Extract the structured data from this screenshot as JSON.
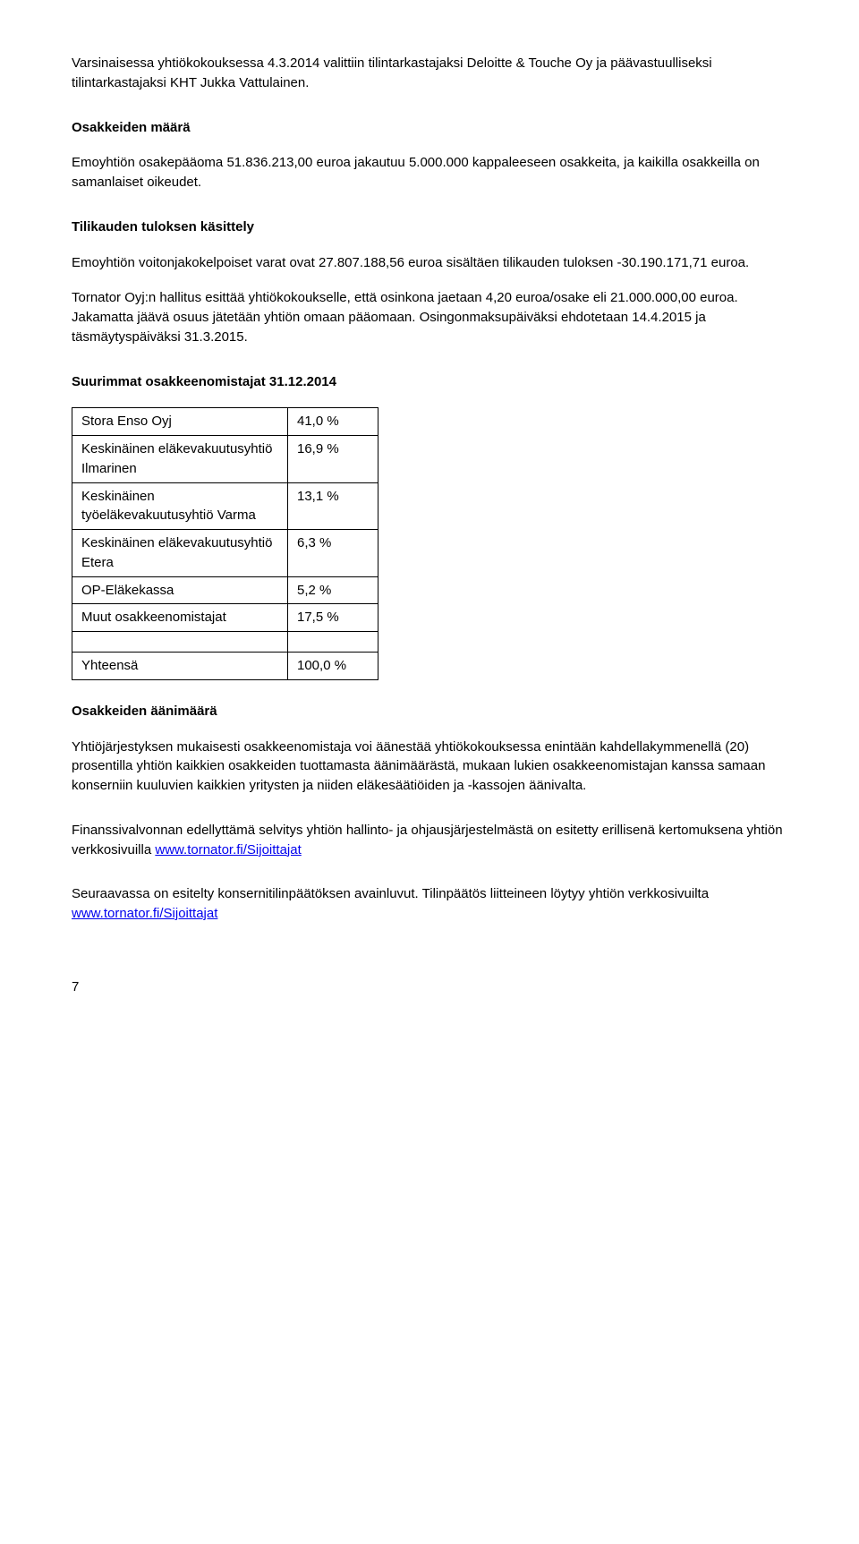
{
  "para1": "Varsinaisessa yhtiökokouksessa 4.3.2014 valittiin tilintarkastajaksi Deloitte & Touche Oy ja päävastuulliseksi tilintarkastajaksi KHT Jukka Vattulainen.",
  "heading1": "Osakkeiden määrä",
  "para2": "Emoyhtiön osakepääoma 51.836.213,00 euroa jakautuu 5.000.000 kappaleeseen osakkeita, ja kaikilla osakkeilla on samanlaiset oikeudet.",
  "heading2": "Tilikauden tuloksen käsittely",
  "para3": "Emoyhtiön voitonjakokelpoiset varat ovat 27.807.188,56 euroa sisältäen tilikauden tuloksen -30.190.171,71 euroa.",
  "para4": "Tornator Oyj:n hallitus esittää yhtiökokoukselle, että osinkona jaetaan 4,20 euroa/osake eli 21.000.000,00 euroa. Jakamatta jäävä osuus jätetään yhtiön omaan pääomaan. Osingonmaksupäiväksi ehdotetaan 14.4.2015 ja täsmäytyspäiväksi 31.3.2015.",
  "heading3": "Suurimmat osakkeenomistajat 31.12.2014",
  "table": {
    "rows": [
      {
        "label": "Stora Enso Oyj",
        "value": "41,0 %"
      },
      {
        "label": "Keskinäinen eläkevakuutusyhtiö Ilmarinen",
        "value": "16,9 %"
      },
      {
        "label": "Keskinäinen työeläkevakuutusyhtiö Varma",
        "value": "13,1 %"
      },
      {
        "label": "Keskinäinen eläkevakuutusyhtiö Etera",
        "value": "6,3 %"
      },
      {
        "label": "OP-Eläkekassa",
        "value": "5,2 %"
      },
      {
        "label": "Muut osakkeenomistajat",
        "value": "17,5 %"
      },
      {
        "label": "Yhteensä",
        "value": "100,0 %"
      }
    ]
  },
  "heading4": "Osakkeiden äänimäärä",
  "para5": "Yhtiöjärjestyksen mukaisesti osakkeenomistaja voi äänestää yhtiökokouksessa enintään kahdellakymmenellä (20) prosentilla yhtiön kaikkien osakkeiden tuottamasta äänimäärästä, mukaan lukien osakkeenomistajan kanssa samaan konserniin kuuluvien kaikkien yritysten ja niiden eläkesäätiöiden ja -kassojen äänivalta.",
  "para6_pre": "Finanssivalvonnan edellyttämä selvitys yhtiön hallinto- ja ohjausjärjestelmästä on esitetty erillisenä kertomuksena yhtiön verkkosivuilla ",
  "link1": "www.tornator.fi/Sijoittajat",
  "para7_pre": "Seuraavassa on esitelty konsernitilinpäätöksen avainluvut. Tilinpäätös liitteineen löytyy yhtiön verkkosivuilta ",
  "link2": "www.tornator.fi/Sijoittajat",
  "page_number": "7"
}
